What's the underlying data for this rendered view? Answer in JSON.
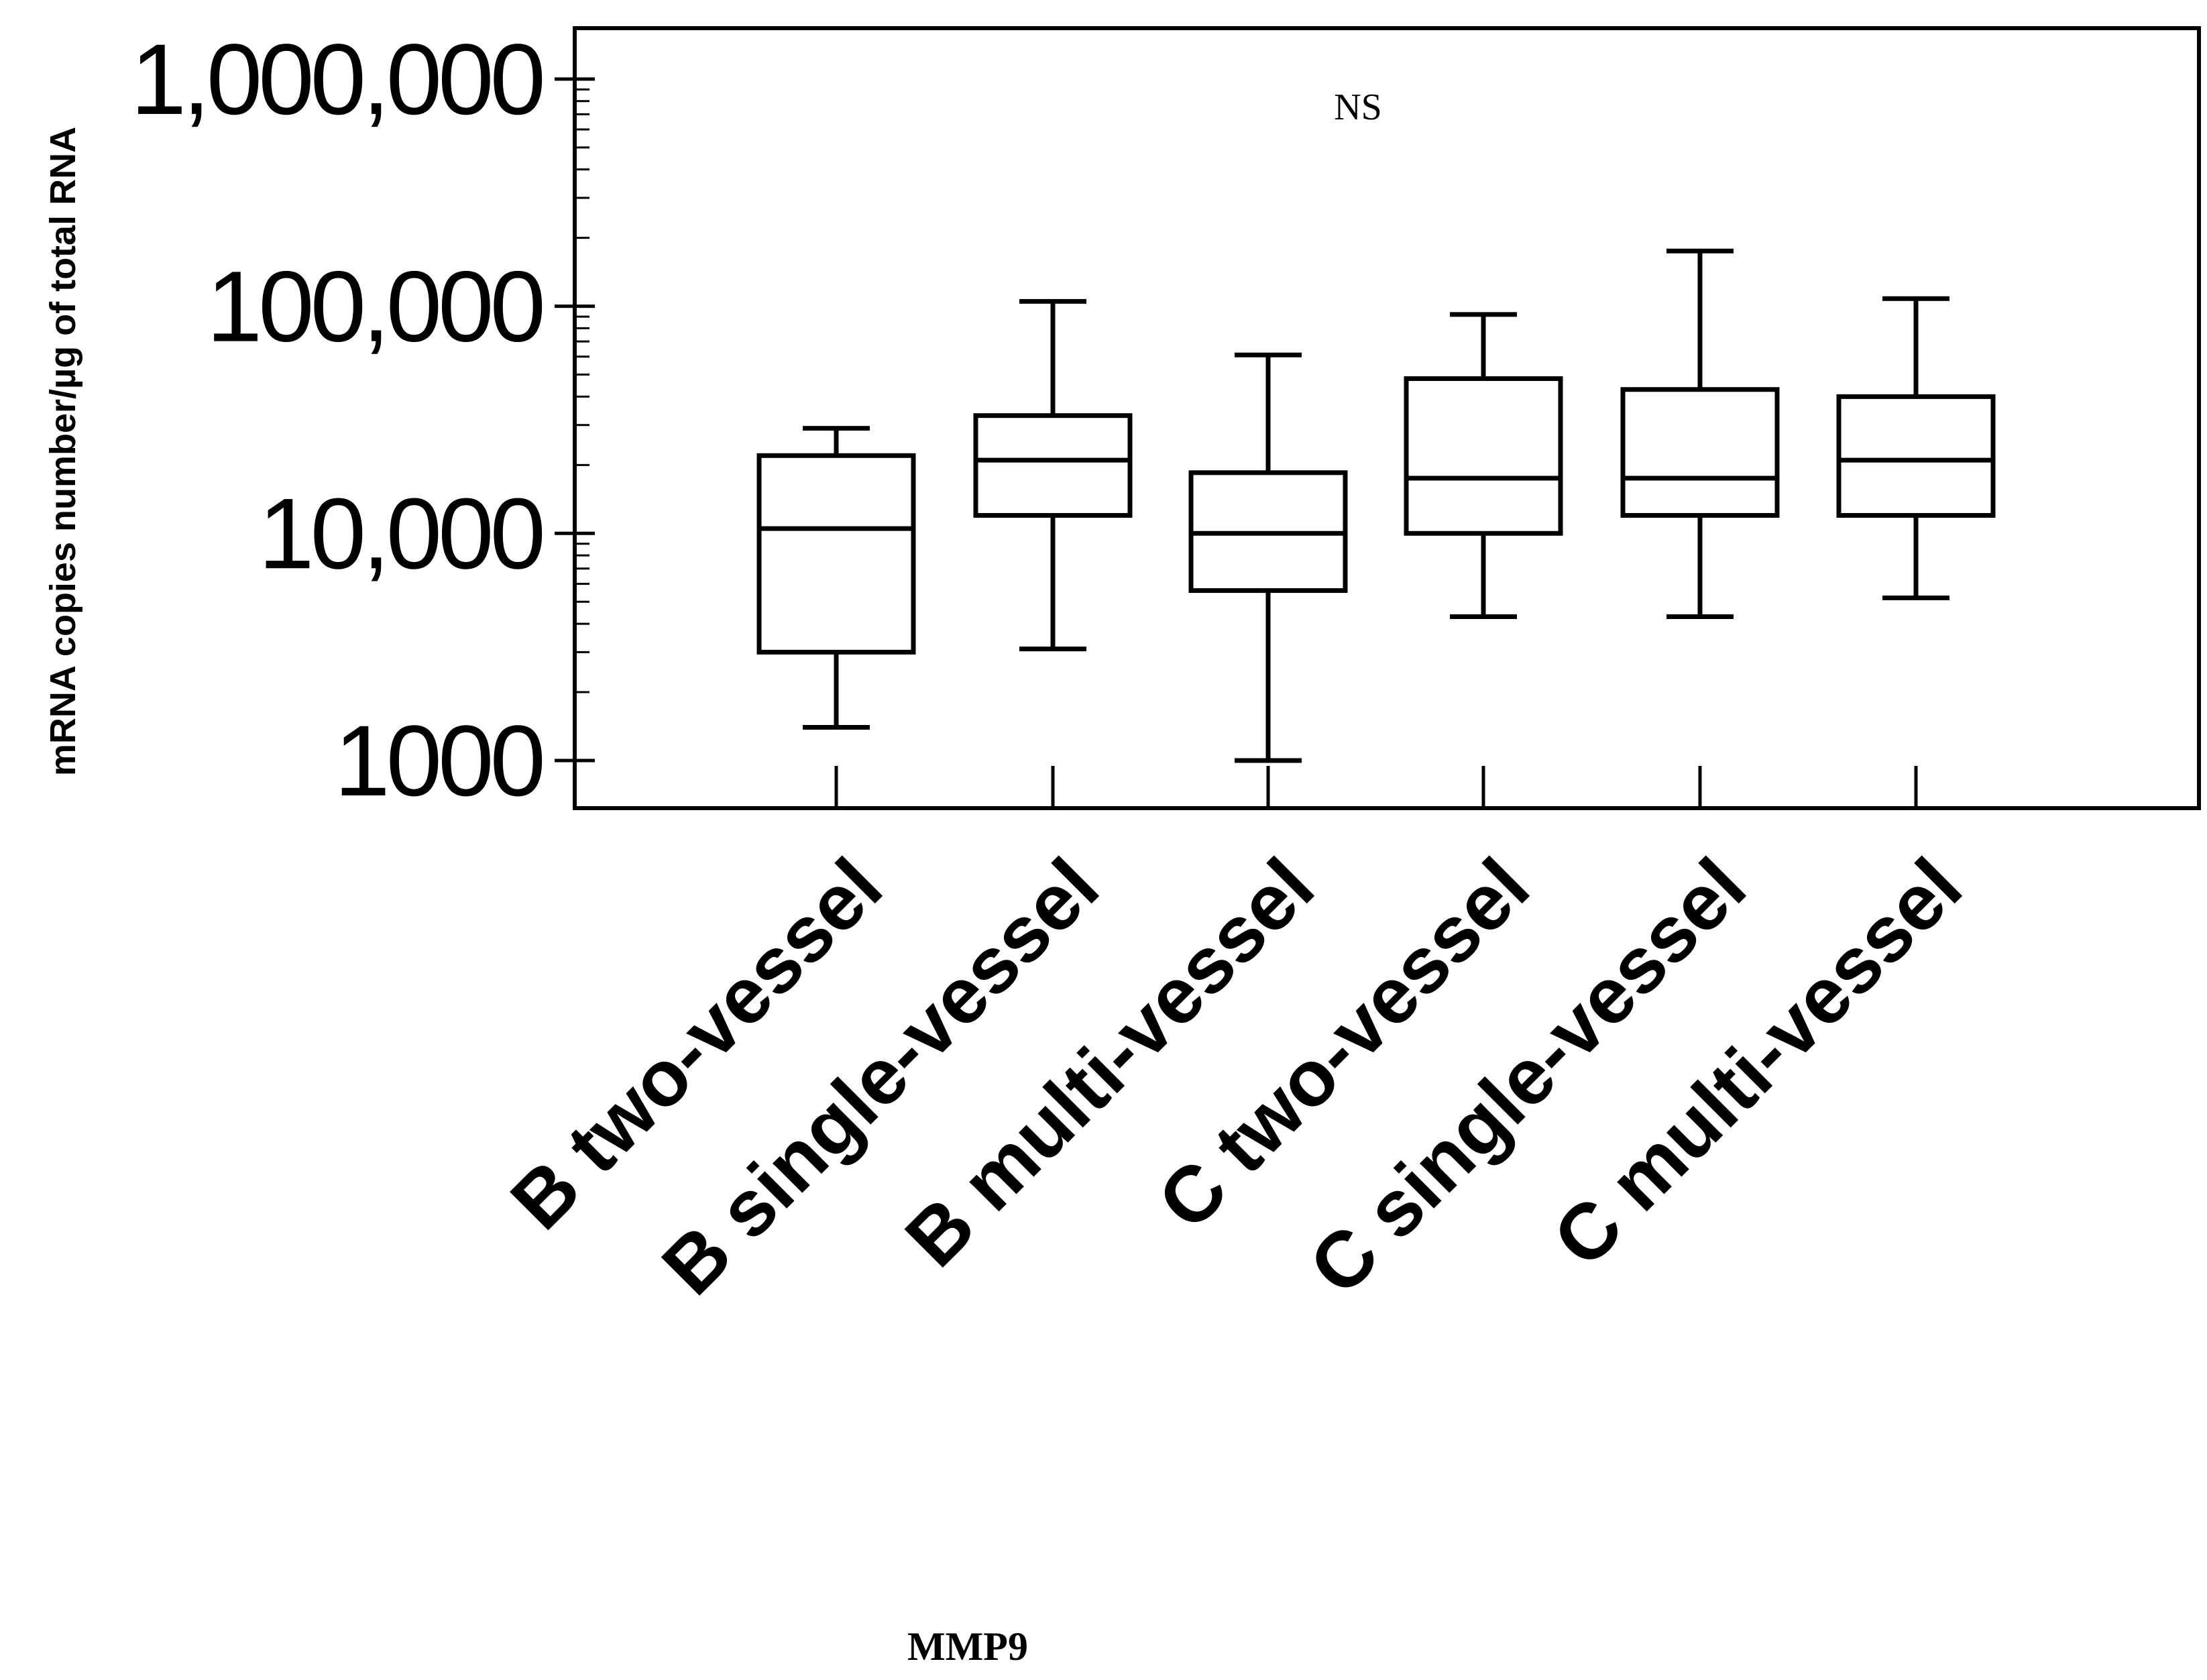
{
  "chart_data": {
    "type": "box",
    "yscale": "log",
    "ylim": [
      700,
      1400000
    ],
    "ylabel": "mRNA copies number/µg of total RNA",
    "yticks": [
      {
        "value": 1000,
        "label": "1000"
      },
      {
        "value": 10000,
        "label": "10,000"
      },
      {
        "value": 100000,
        "label": "100,000"
      },
      {
        "value": 1000000,
        "label": "1,000,000"
      }
    ],
    "categories": [
      "B two-vessel",
      "B single-vessel",
      "B multi-vessel",
      "C two-vessel",
      "C single-vessel",
      "C multi-vessel"
    ],
    "boxes": [
      {
        "min": 1400,
        "q1": 3000,
        "median": 10500,
        "q3": 22000,
        "max": 29000
      },
      {
        "min": 3100,
        "q1": 12000,
        "median": 21000,
        "q3": 33000,
        "max": 105000
      },
      {
        "min": 1000,
        "q1": 5600,
        "median": 10000,
        "q3": 18500,
        "max": 61000
      },
      {
        "min": 4300,
        "q1": 10000,
        "median": 17500,
        "q3": 48000,
        "max": 92000
      },
      {
        "min": 4300,
        "q1": 12000,
        "median": 17500,
        "q3": 43000,
        "max": 175000
      },
      {
        "min": 5200,
        "q1": 12000,
        "median": 21000,
        "q3": 40000,
        "max": 108000
      }
    ],
    "annotation": "NS",
    "caption": "MMP9"
  }
}
